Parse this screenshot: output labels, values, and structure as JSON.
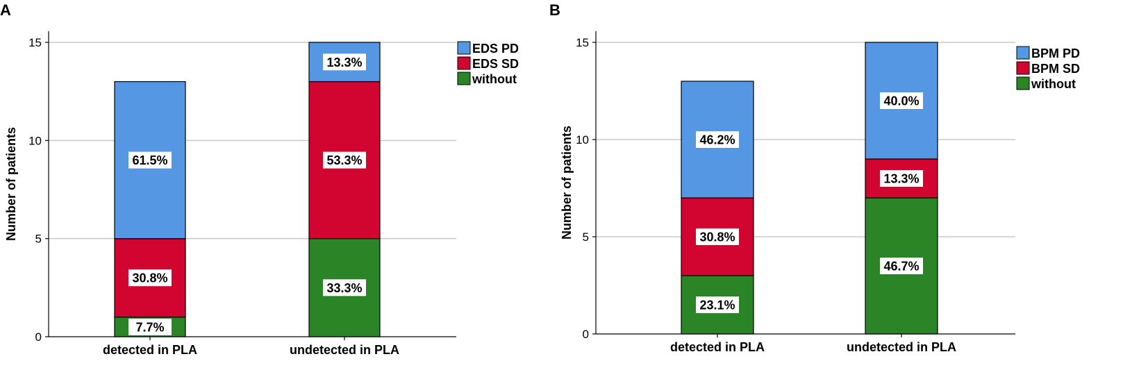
{
  "colors": {
    "pd": "#5597e2",
    "sd": "#d1052f",
    "without": "#2b8526",
    "grid": "#c8c8c8",
    "axis": "#000000"
  },
  "chart_data": [
    {
      "panel": "A",
      "type": "bar",
      "stacked": true,
      "ylabel": "Number of patients",
      "ylim": [
        0,
        15
      ],
      "yticks": [
        0,
        5,
        10,
        15
      ],
      "categories": [
        "detected in PLA",
        "undetected in PLA"
      ],
      "series": [
        {
          "name": "without",
          "color_key": "without",
          "values": [
            1,
            5
          ],
          "labels": [
            "7.7%",
            "33.3%"
          ]
        },
        {
          "name": "EDS SD",
          "color_key": "sd",
          "values": [
            4,
            8
          ],
          "labels": [
            "30.8%",
            "53.3%"
          ]
        },
        {
          "name": "EDS PD",
          "color_key": "pd",
          "values": [
            8,
            2
          ],
          "labels": [
            "61.5%",
            "13.3%"
          ]
        }
      ],
      "legend": [
        "EDS PD",
        "EDS SD",
        "without"
      ],
      "legend_position": "top-right"
    },
    {
      "panel": "B",
      "type": "bar",
      "stacked": true,
      "ylabel": "Number of patients",
      "ylim": [
        0,
        15
      ],
      "yticks": [
        0,
        5,
        10,
        15
      ],
      "categories": [
        "detected in PLA",
        "undetected in PLA"
      ],
      "series": [
        {
          "name": "without",
          "color_key": "without",
          "values": [
            3,
            7
          ],
          "labels": [
            "23.1%",
            "46.7%"
          ]
        },
        {
          "name": "BPM SD",
          "color_key": "sd",
          "values": [
            4,
            2
          ],
          "labels": [
            "30.8%",
            "13.3%"
          ]
        },
        {
          "name": "BPM PD",
          "color_key": "pd",
          "values": [
            6,
            6
          ],
          "labels": [
            "46.2%",
            "40.0%"
          ]
        }
      ],
      "legend": [
        "BPM PD",
        "BPM SD",
        "without"
      ],
      "legend_position": "top-right"
    }
  ]
}
